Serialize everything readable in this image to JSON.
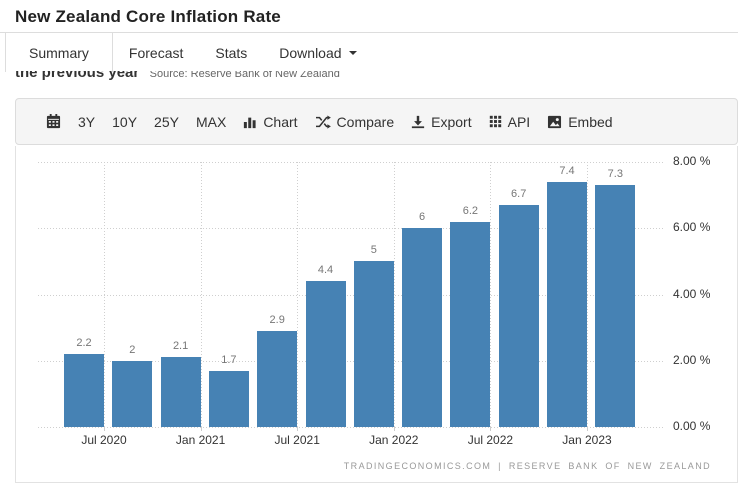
{
  "header": {
    "title": "New Zealand Core Inflation Rate"
  },
  "tabs": {
    "summary": "Summary",
    "forecast": "Forecast",
    "stats": "Stats",
    "download": "Download"
  },
  "description": {
    "bold_text": "the previous year",
    "source_text": "Source: Reserve Bank of New Zealand"
  },
  "toolbar": {
    "range_buttons": [
      "3Y",
      "10Y",
      "25Y",
      "MAX"
    ],
    "chart_label": "Chart",
    "compare_label": "Compare",
    "export_label": "Export",
    "api_label": "API",
    "embed_label": "Embed"
  },
  "chart_data": {
    "type": "bar",
    "title": "New Zealand Core Inflation Rate",
    "values": [
      2.2,
      2,
      2.1,
      1.7,
      2.9,
      4.4,
      5,
      6,
      6.2,
      6.7,
      7.4,
      7.3
    ],
    "bar_labels": [
      "2.2",
      "2",
      "2.1",
      "1.7",
      "2.9",
      "4.4",
      "5",
      "6",
      "6.2",
      "6.7",
      "7.4",
      "7.3"
    ],
    "x_tick_labels": [
      "Jul 2020",
      "Jan 2021",
      "Jul 2021",
      "Jan 2022",
      "Jul 2022",
      "Jan 2023"
    ],
    "y_tick_labels": [
      "0.00 %",
      "2.00 %",
      "4.00 %",
      "6.00 %",
      "8.00 %"
    ],
    "ylim": [
      0,
      8
    ],
    "y_step": 2,
    "unit": "%",
    "grid": "dotted",
    "legend": "none",
    "bar_color": "#4682B4",
    "grid_color": "#CFCFCF",
    "attribution": "TRADINGECONOMICS.COM | RESERVE BANK OF NEW ZEALAND"
  }
}
